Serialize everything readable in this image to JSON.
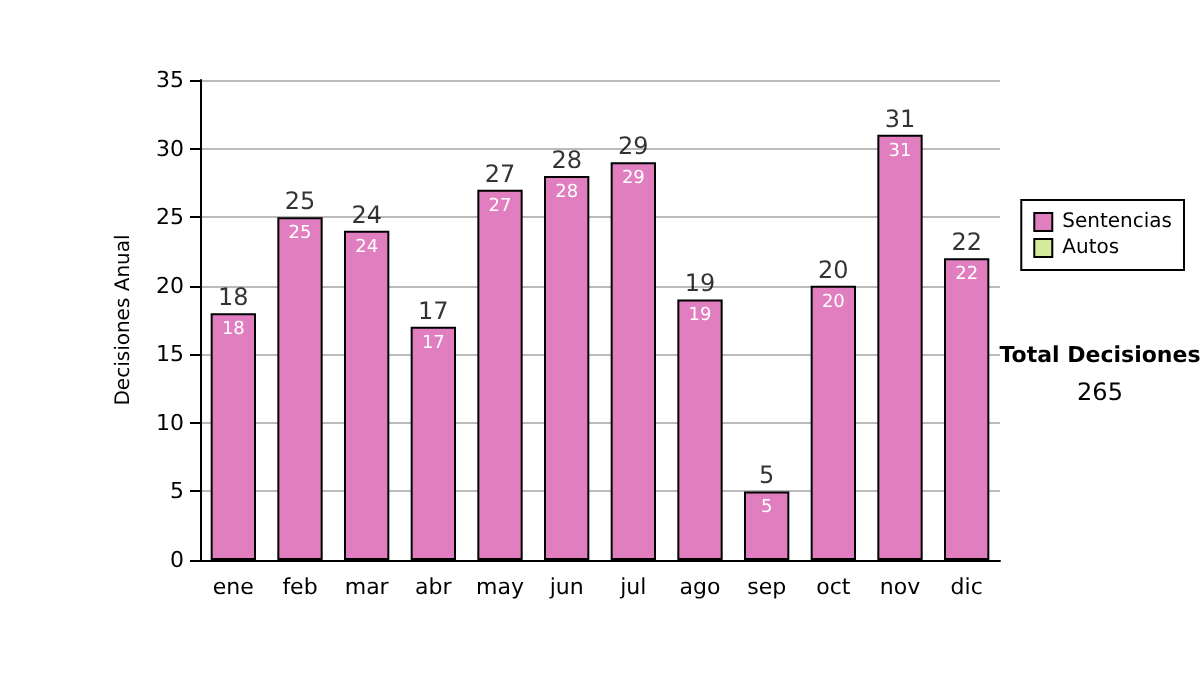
{
  "chart_data": {
    "type": "bar",
    "ylabel": "Decisiones Anual",
    "categories": [
      "ene",
      "feb",
      "mar",
      "abr",
      "may",
      "jun",
      "jul",
      "ago",
      "sep",
      "oct",
      "nov",
      "dic"
    ],
    "series": [
      {
        "name": "Sentencias",
        "color": "#e07ec0",
        "values": [
          18,
          25,
          24,
          17,
          27,
          28,
          29,
          19,
          5,
          20,
          31,
          22
        ]
      },
      {
        "name": "Autos",
        "color": "#d4ea9c",
        "values": [
          null,
          null,
          null,
          null,
          null,
          null,
          null,
          null,
          null,
          null,
          null,
          null
        ]
      }
    ],
    "stacked": true,
    "data_labels": true,
    "totals": [
      "18",
      "25",
      "24",
      "17",
      "27",
      "28",
      "29",
      "19",
      "5",
      "20",
      "31",
      "22"
    ],
    "ylim": [
      0,
      35
    ],
    "yticks": [
      0,
      5,
      10,
      15,
      20,
      25,
      30,
      35
    ],
    "grid": "y",
    "legend": "right",
    "annotations": [
      "Total Decisiones",
      "265"
    ]
  }
}
